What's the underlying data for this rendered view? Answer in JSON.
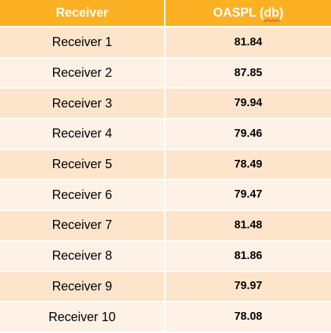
{
  "table": {
    "headers": {
      "receiver": "Receiver",
      "oaspl_prefix": "OASPL (",
      "oaspl_unit": "db",
      "oaspl_suffix": ")"
    },
    "rows": [
      {
        "receiver": "Receiver 1",
        "oaspl": "81.84"
      },
      {
        "receiver": "Receiver 2",
        "oaspl": "87.85"
      },
      {
        "receiver": "Receiver 3",
        "oaspl": "79.94"
      },
      {
        "receiver": "Receiver 4",
        "oaspl": "79.46"
      },
      {
        "receiver": "Receiver 5",
        "oaspl": "78.49"
      },
      {
        "receiver": "Receiver 6",
        "oaspl": "79.47"
      },
      {
        "receiver": "Receiver 7",
        "oaspl": "81.48"
      },
      {
        "receiver": "Receiver 8",
        "oaspl": "81.86"
      },
      {
        "receiver": "Receiver 9",
        "oaspl": "79.97"
      },
      {
        "receiver": "Receiver 10",
        "oaspl": "78.08"
      }
    ]
  },
  "colors": {
    "header_bg": "#fbb123",
    "row_odd_bg": "#fde5cc",
    "row_even_bg": "#fef1e5",
    "spellcheck_underline": "#e02020"
  }
}
